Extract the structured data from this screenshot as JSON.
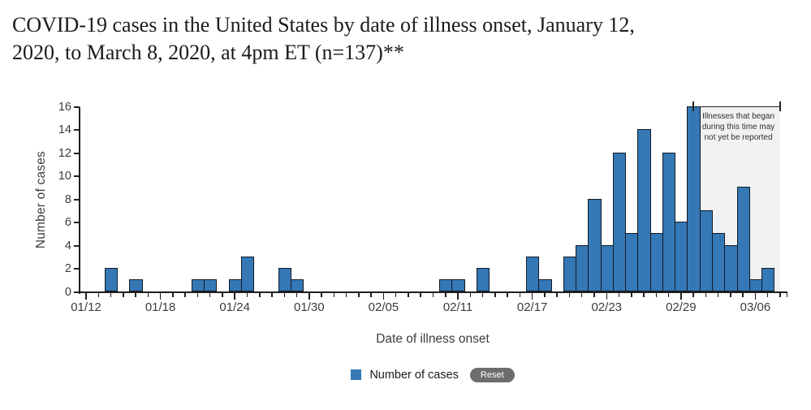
{
  "header": {
    "title": "COVID-19 cases in the United States by date of illness onset, January 12,\n2020, to March 8, 2020, at 4pm ET (n=137)**"
  },
  "chart_data": {
    "type": "bar",
    "xlabel": "Date of illness onset",
    "ylabel": "Number of cases",
    "ylim": [
      0,
      16
    ],
    "y_ticks": [
      0,
      2,
      4,
      6,
      8,
      10,
      12,
      14,
      16
    ],
    "x_major_ticks": [
      "01/12",
      "01/18",
      "01/24",
      "01/30",
      "02/05",
      "02/11",
      "02/17",
      "02/23",
      "02/29",
      "03/06"
    ],
    "days": [
      "01/12",
      "01/13",
      "01/14",
      "01/15",
      "01/16",
      "01/17",
      "01/18",
      "01/19",
      "01/20",
      "01/21",
      "01/22",
      "01/23",
      "01/24",
      "01/25",
      "01/26",
      "01/27",
      "01/28",
      "01/29",
      "01/30",
      "01/31",
      "02/01",
      "02/02",
      "02/03",
      "02/04",
      "02/05",
      "02/06",
      "02/07",
      "02/08",
      "02/09",
      "02/10",
      "02/11",
      "02/12",
      "02/13",
      "02/14",
      "02/15",
      "02/16",
      "02/17",
      "02/18",
      "02/19",
      "02/20",
      "02/21",
      "02/22",
      "02/23",
      "02/24",
      "02/25",
      "02/26",
      "02/27",
      "02/28",
      "02/29",
      "03/01",
      "03/02",
      "03/03",
      "03/04",
      "03/05",
      "03/06",
      "03/07",
      "03/08"
    ],
    "values": [
      0,
      0,
      2,
      0,
      1,
      0,
      0,
      0,
      0,
      1,
      1,
      0,
      1,
      3,
      0,
      0,
      2,
      1,
      0,
      0,
      0,
      0,
      0,
      0,
      0,
      0,
      0,
      0,
      0,
      1,
      1,
      0,
      2,
      0,
      0,
      0,
      3,
      1,
      0,
      3,
      4,
      8,
      4,
      12,
      5,
      14,
      5,
      12,
      6,
      16,
      7,
      5,
      4,
      9,
      1,
      2,
      0
    ],
    "total_cases": 137,
    "bar_color": "#3478b5",
    "bar_border_color": "#141a24",
    "unreported_region": {
      "start_date": "03/01",
      "end_date": "03/08",
      "fill": "#f0f1f2",
      "note": "Illnesses that began during this time may not yet be reported"
    },
    "legend": {
      "label": "Number of cases"
    }
  },
  "ui": {
    "reset_label": "Reset"
  }
}
